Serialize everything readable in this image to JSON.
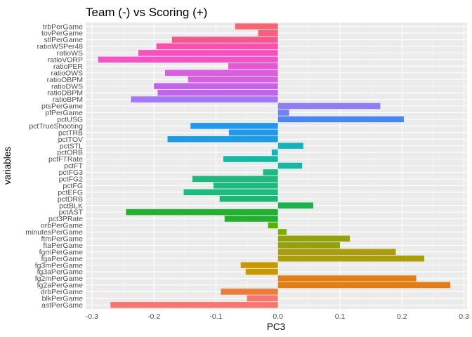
{
  "chart_data": {
    "type": "bar",
    "orientation": "horizontal",
    "title": "Team (-) vs Scoring (+)",
    "xlabel": "PC3",
    "ylabel": "variables",
    "xlim": [
      -0.31,
      0.305
    ],
    "xticks": [
      -0.3,
      -0.2,
      -0.1,
      0.0,
      0.1,
      0.2,
      0.3
    ],
    "xtick_labels": [
      "-0.3",
      "-0.2",
      "-0.1",
      "0.0",
      "0.1",
      "0.2",
      "0.3"
    ],
    "grid": true,
    "legend": "none",
    "panel_color": "#ebebeb",
    "categories": [
      "astPerGame",
      "blkPerGame",
      "drbPerGame",
      "fg2aPerGame",
      "fg2mPerGame",
      "fg3aPerGame",
      "fg3mPerGame",
      "fgaPerGame",
      "fgmPerGame",
      "ftaPerGame",
      "ftmPerGame",
      "minutesPerGame",
      "orbPerGame",
      "pct3PRate",
      "pctAST",
      "pctBLK",
      "pctDRB",
      "pctEFG",
      "pctFG",
      "pctFG2",
      "pctFG3",
      "pctFT",
      "pctFTRate",
      "pctORB",
      "pctSTL",
      "pctTOV",
      "pctTRB",
      "pctTrueShooting",
      "pctUSG",
      "pfPerGame",
      "ptsPerGame",
      "ratioBPM",
      "ratioDBPM",
      "ratioDWS",
      "ratioOBPM",
      "ratioOWS",
      "ratioPER",
      "ratioVORP",
      "ratioWS",
      "ratioWSPer48",
      "stlPerGame",
      "tovPerGame",
      "trbPerGame"
    ],
    "values": [
      -0.27,
      -0.05,
      -0.092,
      0.278,
      0.223,
      -0.052,
      -0.06,
      0.236,
      0.19,
      0.1,
      0.116,
      0.014,
      -0.016,
      -0.086,
      -0.245,
      0.057,
      -0.094,
      -0.152,
      -0.104,
      -0.138,
      -0.024,
      0.039,
      -0.088,
      -0.01,
      0.041,
      -0.178,
      -0.079,
      -0.141,
      0.203,
      0.018,
      0.165,
      -0.237,
      -0.194,
      -0.2,
      -0.145,
      -0.182,
      -0.08,
      -0.29,
      -0.225,
      -0.196,
      -0.171,
      -0.032,
      -0.069
    ],
    "colors": [
      "#F8766D",
      "#F8766D",
      "#EE7C36",
      "#E47E12",
      "#E47E12",
      "#C99800",
      "#C99800",
      "#AB9E0A",
      "#AB9E0A",
      "#93A20A",
      "#93A20A",
      "#7CAE00",
      "#53B400",
      "#22B12F",
      "#22B12F",
      "#16B34E",
      "#1CB772",
      "#1CBB80",
      "#1CBB80",
      "#1CBB80",
      "#1CBB80",
      "#14B9A6",
      "#14B9A6",
      "#14B4BD",
      "#14B4BD",
      "#1A9CE8",
      "#2198F0",
      "#2198F0",
      "#4A86F5",
      "#6E80F8",
      "#8D7DF8",
      "#A476F8",
      "#C263EC",
      "#C263EC",
      "#DB5DE2",
      "#DB5DE2",
      "#E458D0",
      "#F552C8",
      "#FB4FC0",
      "#FB4FB0",
      "#F8568E",
      "#F95E80",
      "#F8646F"
    ]
  }
}
